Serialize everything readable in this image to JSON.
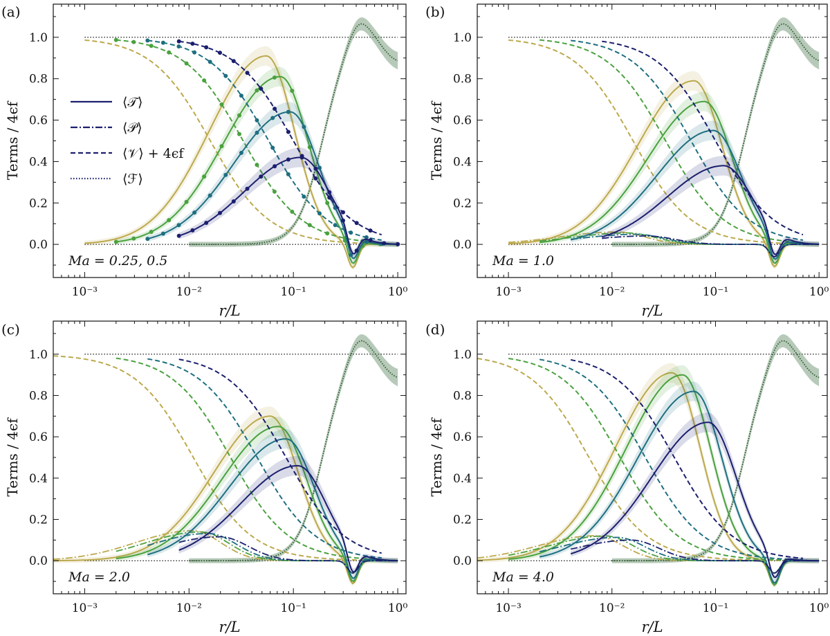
{
  "colors": {
    "navy": "#1b1f6e",
    "teal": "#1e6f80",
    "green": "#4aa13f",
    "olive": "#bca94c",
    "forcing": "#2f5a2f",
    "forcing_band": "#5f8a63"
  },
  "chart_data": [
    {
      "panel_label": "(a)",
      "annotation": "Ma = 0.25,  0.5",
      "type": "line",
      "xscale": "log",
      "xlim": [
        0.0005,
        1.2
      ],
      "ylim": [
        -0.16,
        1.16
      ],
      "xticks": [
        {
          "v": 0.001,
          "label": "10⁻³"
        },
        {
          "v": 0.01,
          "label": "10⁻²"
        },
        {
          "v": 0.1,
          "label": "10⁻¹"
        },
        {
          "v": 1,
          "label": "10⁰"
        }
      ],
      "yticks": [
        {
          "v": 0,
          "label": "0.0"
        },
        {
          "v": 0.2,
          "label": "0.2"
        },
        {
          "v": 0.4,
          "label": "0.4"
        },
        {
          "v": 0.6,
          "label": "0.6"
        },
        {
          "v": 0.8,
          "label": "0.8"
        },
        {
          "v": 1,
          "label": "1.0"
        }
      ],
      "xlabel": "r/L",
      "ylabel": "Terms / 4ϵf",
      "reference_lines": [
        0,
        1
      ],
      "legend": [
        "⟨𝒯⟩",
        "⟨𝒫⟩",
        "⟨𝒱⟩ + 4ϵf",
        "⟨ℱ⟩"
      ],
      "pressure_peak": 0,
      "show_markers": true,
      "series": [
        {
          "color": "olive",
          "rmin": 0.001,
          "T_peak": 0.91,
          "T_center": 0.055,
          "V_half": 0.016
        },
        {
          "color": "green",
          "rmin": 0.002,
          "T_peak": 0.81,
          "T_center": 0.075,
          "V_half": 0.033
        },
        {
          "color": "teal",
          "rmin": 0.004,
          "T_peak": 0.64,
          "T_center": 0.093,
          "V_half": 0.058
        },
        {
          "color": "navy",
          "rmin": 0.008,
          "T_peak": 0.42,
          "T_center": 0.118,
          "V_half": 0.1
        }
      ]
    },
    {
      "panel_label": "(b)",
      "annotation": "Ma = 1.0",
      "type": "line",
      "xscale": "log",
      "xlim": [
        0.0005,
        1.2
      ],
      "ylim": [
        -0.16,
        1.16
      ],
      "xticks": [
        {
          "v": 0.001,
          "label": "10⁻³"
        },
        {
          "v": 0.01,
          "label": "10⁻²"
        },
        {
          "v": 0.1,
          "label": "10⁻¹"
        },
        {
          "v": 1,
          "label": "10⁰"
        }
      ],
      "yticks": [
        {
          "v": 0,
          "label": "0.0"
        },
        {
          "v": 0.2,
          "label": "0.2"
        },
        {
          "v": 0.4,
          "label": "0.4"
        },
        {
          "v": 0.6,
          "label": "0.6"
        },
        {
          "v": 0.8,
          "label": "0.8"
        },
        {
          "v": 1,
          "label": "1.0"
        }
      ],
      "xlabel": "r/L",
      "ylabel": "Terms / 4ϵf",
      "reference_lines": [
        0,
        1
      ],
      "pressure_peak": 0.065,
      "show_markers": false,
      "series": [
        {
          "color": "olive",
          "rmin": 0.001,
          "T_peak": 0.79,
          "T_center": 0.062,
          "V_half": 0.016
        },
        {
          "color": "green",
          "rmin": 0.002,
          "T_peak": 0.69,
          "T_center": 0.078,
          "V_half": 0.033
        },
        {
          "color": "teal",
          "rmin": 0.004,
          "T_peak": 0.55,
          "T_center": 0.095,
          "V_half": 0.058
        },
        {
          "color": "navy",
          "rmin": 0.008,
          "T_peak": 0.38,
          "T_center": 0.12,
          "V_half": 0.1
        }
      ]
    },
    {
      "panel_label": "(c)",
      "annotation": "Ma = 2.0",
      "type": "line",
      "xscale": "log",
      "xlim": [
        0.0005,
        1.2
      ],
      "ylim": [
        -0.16,
        1.16
      ],
      "xticks": [
        {
          "v": 0.001,
          "label": "10⁻³"
        },
        {
          "v": 0.01,
          "label": "10⁻²"
        },
        {
          "v": 0.1,
          "label": "10⁻¹"
        },
        {
          "v": 1,
          "label": "10⁰"
        }
      ],
      "yticks": [
        {
          "v": 0,
          "label": "0.0"
        },
        {
          "v": 0.2,
          "label": "0.2"
        },
        {
          "v": 0.4,
          "label": "0.4"
        },
        {
          "v": 0.6,
          "label": "0.6"
        },
        {
          "v": 0.8,
          "label": "0.8"
        },
        {
          "v": 1,
          "label": "1.0"
        }
      ],
      "xlabel": "r/L",
      "ylabel": "Terms / 4ϵf",
      "reference_lines": [
        0,
        1
      ],
      "pressure_peak": 0.17,
      "show_markers": false,
      "series": [
        {
          "color": "olive",
          "rmin": 0.0005,
          "T_peak": 0.7,
          "T_center": 0.06,
          "V_half": 0.011
        },
        {
          "color": "green",
          "rmin": 0.002,
          "T_peak": 0.65,
          "T_center": 0.072,
          "V_half": 0.025
        },
        {
          "color": "teal",
          "rmin": 0.004,
          "T_peak": 0.59,
          "T_center": 0.085,
          "V_half": 0.045
        },
        {
          "color": "navy",
          "rmin": 0.008,
          "T_peak": 0.46,
          "T_center": 0.11,
          "V_half": 0.085
        }
      ]
    },
    {
      "panel_label": "(d)",
      "annotation": "Ma = 4.0",
      "type": "line",
      "xscale": "log",
      "xlim": [
        0.0005,
        1.2
      ],
      "ylim": [
        -0.16,
        1.16
      ],
      "xticks": [
        {
          "v": 0.001,
          "label": "10⁻³"
        },
        {
          "v": 0.01,
          "label": "10⁻²"
        },
        {
          "v": 0.1,
          "label": "10⁻¹"
        },
        {
          "v": 1,
          "label": "10⁰"
        }
      ],
      "yticks": [
        {
          "v": 0,
          "label": "0.0"
        },
        {
          "v": 0.2,
          "label": "0.2"
        },
        {
          "v": 0.4,
          "label": "0.4"
        },
        {
          "v": 0.6,
          "label": "0.6"
        },
        {
          "v": 0.8,
          "label": "0.8"
        },
        {
          "v": 1,
          "label": "1.0"
        }
      ],
      "xlabel": "r/L",
      "ylabel": "Terms / 4ϵf",
      "reference_lines": [
        0,
        1
      ],
      "pressure_peak": 0.12,
      "show_markers": false,
      "series": [
        {
          "color": "olive",
          "rmin": 0.0005,
          "T_peak": 0.91,
          "T_center": 0.038,
          "V_half": 0.006
        },
        {
          "color": "green",
          "rmin": 0.001,
          "T_peak": 0.9,
          "T_center": 0.048,
          "V_half": 0.012
        },
        {
          "color": "teal",
          "rmin": 0.002,
          "T_peak": 0.82,
          "T_center": 0.062,
          "V_half": 0.021
        },
        {
          "color": "navy",
          "rmin": 0.004,
          "T_peak": 0.67,
          "T_center": 0.085,
          "V_half": 0.04
        }
      ]
    }
  ]
}
